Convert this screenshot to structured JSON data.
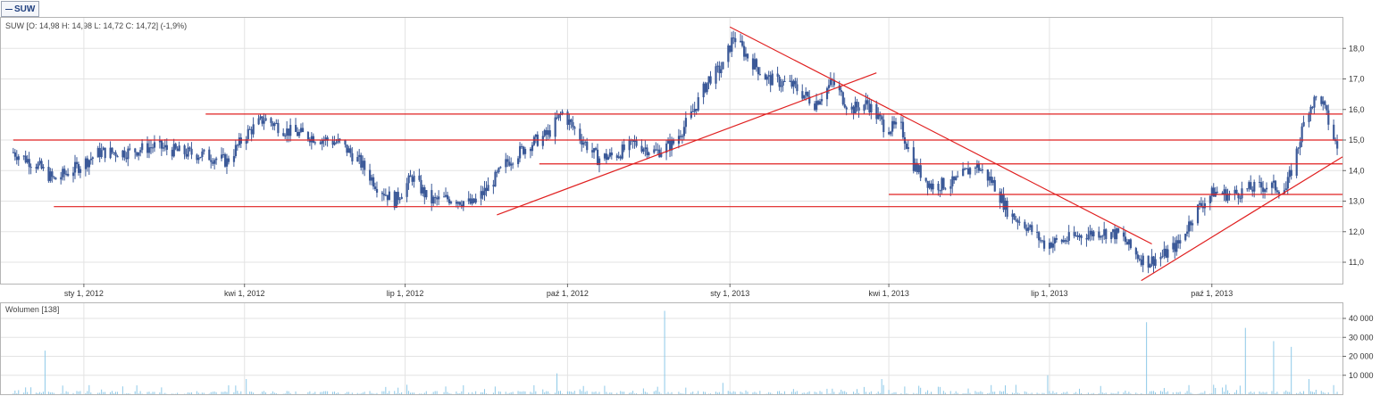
{
  "tab": {
    "label": "SUW"
  },
  "price_legend": "SUW [O: 14,98  H: 14,98  L: 14,72  C: 14,72] (-1,9%)",
  "volume_legend": "Wolumen [138]",
  "colors": {
    "candle": "#3b5998",
    "trend": "#e02020",
    "grid": "#e3e3e3",
    "volume": "#8ec9e8"
  },
  "chart_data": [
    {
      "type": "candlestick",
      "title": "SUW",
      "x_ticks": [
        "sty 1, 2012",
        "kwi 1, 2012",
        "lip 1, 2012",
        "paź 1, 2012",
        "sty 1, 2013",
        "kwi 1, 2013",
        "lip 1, 2013",
        "paź 1, 2013"
      ],
      "y_ticks": [
        "11,0",
        "12,0",
        "13,0",
        "14,0",
        "15,0",
        "16,0",
        "17,0",
        "18,0"
      ],
      "ylim": [
        10.3,
        19.0
      ],
      "x_range": [
        "2011-11-15",
        "2013-12-14"
      ],
      "close_path": [
        [
          "2011-11-22",
          14.6
        ],
        [
          "2011-12-05",
          14.2
        ],
        [
          "2011-12-15",
          13.7
        ],
        [
          "2011-12-28",
          14.1
        ],
        [
          "2012-01-10",
          14.6
        ],
        [
          "2012-01-25",
          14.6
        ],
        [
          "2012-02-10",
          14.8
        ],
        [
          "2012-02-25",
          14.6
        ],
        [
          "2012-03-10",
          14.5
        ],
        [
          "2012-03-22",
          14.3
        ],
        [
          "2012-04-02",
          15.2
        ],
        [
          "2012-04-12",
          15.7
        ],
        [
          "2012-04-25",
          15.3
        ],
        [
          "2012-05-10",
          15.1
        ],
        [
          "2012-05-25",
          14.9
        ],
        [
          "2012-06-05",
          14.3
        ],
        [
          "2012-06-15",
          13.5
        ],
        [
          "2012-06-25",
          13.0
        ],
        [
          "2012-07-05",
          13.8
        ],
        [
          "2012-07-15",
          13.0
        ],
        [
          "2012-07-28",
          13.1
        ],
        [
          "2012-08-08",
          12.9
        ],
        [
          "2012-08-18",
          13.5
        ],
        [
          "2012-08-28",
          14.3
        ],
        [
          "2012-09-08",
          14.8
        ],
        [
          "2012-09-20",
          15.2
        ],
        [
          "2012-09-28",
          15.9
        ],
        [
          "2012-10-08",
          15.1
        ],
        [
          "2012-10-18",
          14.4
        ],
        [
          "2012-10-28",
          14.5
        ],
        [
          "2012-11-08",
          14.9
        ],
        [
          "2012-11-20",
          14.6
        ],
        [
          "2012-11-30",
          14.9
        ],
        [
          "2012-12-10",
          15.8
        ],
        [
          "2012-12-20",
          17.0
        ],
        [
          "2012-12-28",
          17.4
        ],
        [
          "2013-01-03",
          18.4
        ],
        [
          "2013-01-10",
          17.8
        ],
        [
          "2013-01-22",
          17.0
        ],
        [
          "2013-02-05",
          16.8
        ],
        [
          "2013-02-18",
          16.2
        ],
        [
          "2013-02-28",
          16.9
        ],
        [
          "2013-03-10",
          16.0
        ],
        [
          "2013-03-20",
          16.2
        ],
        [
          "2013-03-30",
          15.4
        ],
        [
          "2013-04-08",
          15.4
        ],
        [
          "2013-04-15",
          14.2
        ],
        [
          "2013-04-25",
          13.5
        ],
        [
          "2013-05-08",
          13.6
        ],
        [
          "2013-05-20",
          14.2
        ],
        [
          "2013-05-30",
          13.6
        ],
        [
          "2013-06-08",
          12.6
        ],
        [
          "2013-06-18",
          12.2
        ],
        [
          "2013-06-28",
          11.6
        ],
        [
          "2013-07-08",
          11.7
        ],
        [
          "2013-07-20",
          11.9
        ],
        [
          "2013-07-30",
          12.0
        ],
        [
          "2013-08-10",
          11.9
        ],
        [
          "2013-08-18",
          11.3
        ],
        [
          "2013-08-25",
          11.0
        ],
        [
          "2013-09-03",
          11.2
        ],
        [
          "2013-09-12",
          11.6
        ],
        [
          "2013-09-22",
          12.7
        ],
        [
          "2013-10-02",
          13.3
        ],
        [
          "2013-10-12",
          13.2
        ],
        [
          "2013-10-22",
          13.4
        ],
        [
          "2013-11-02",
          13.5
        ],
        [
          "2013-11-12",
          13.4
        ],
        [
          "2013-11-18",
          14.6
        ],
        [
          "2013-11-24",
          16.0
        ],
        [
          "2013-12-01",
          16.5
        ],
        [
          "2013-12-06",
          15.6
        ],
        [
          "2013-12-11",
          14.72
        ]
      ],
      "trend_lines": [
        {
          "kind": "horizontal",
          "from": "2011-11-22",
          "to": "2013-12-14",
          "y": 15.0
        },
        {
          "kind": "horizontal",
          "from": "2012-03-10",
          "to": "2013-12-14",
          "y": 15.85
        },
        {
          "kind": "horizontal",
          "from": "2011-12-15",
          "to": "2013-12-14",
          "y": 12.82
        },
        {
          "kind": "horizontal",
          "from": "2012-09-15",
          "to": "2013-12-14",
          "y": 14.22
        },
        {
          "kind": "horizontal",
          "from": "2013-04-01",
          "to": "2013-12-14",
          "y": 13.22
        },
        {
          "kind": "line",
          "from": [
            "2012-08-22",
            12.55
          ],
          "to": [
            "2013-03-25",
            17.2
          ]
        },
        {
          "kind": "line",
          "from": [
            "2013-01-01",
            18.7
          ],
          "to": [
            "2013-08-28",
            11.6
          ]
        },
        {
          "kind": "line",
          "from": [
            "2013-08-22",
            10.4
          ],
          "to": [
            "2013-12-14",
            14.45
          ]
        }
      ]
    },
    {
      "type": "bar",
      "title": "Wolumen",
      "y_ticks": [
        "10 000",
        "20 000",
        "30 000",
        "40 000"
      ],
      "ylim": [
        0,
        48000
      ],
      "spikes": [
        [
          "2011-12-10",
          23000
        ],
        [
          "2012-04-02",
          8000
        ],
        [
          "2012-07-02",
          5000
        ],
        [
          "2012-09-25",
          11000
        ],
        [
          "2012-11-25",
          44000
        ],
        [
          "2012-12-28",
          6000
        ],
        [
          "2013-03-28",
          8000
        ],
        [
          "2013-06-30",
          10000
        ],
        [
          "2013-08-25",
          38000
        ],
        [
          "2013-10-20",
          35000
        ],
        [
          "2013-11-05",
          28000
        ],
        [
          "2013-11-15",
          25000
        ],
        [
          "2013-11-25",
          8000
        ]
      ]
    }
  ]
}
